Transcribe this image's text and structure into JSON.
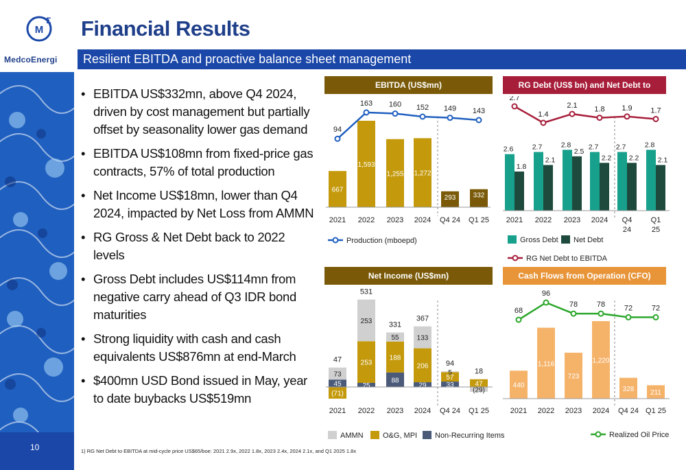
{
  "brand": {
    "logo_text": "MedcoEnergi",
    "page_number": "10"
  },
  "page_title": "Financial Results",
  "subtitle": "Resilient EBITDA and proactive balance sheet management",
  "bullets": [
    "EBITDA US$332mn, above Q4 2024, driven by cost management but partially offset by seasonality lower gas demand",
    "EBITDA US$108mn from fixed-price gas contracts, 57% of total production",
    "Net Income US$18mn, lower than Q4 2024, impacted by Net Loss from AMMN",
    "RG Gross & Net Debt back to 2022 levels",
    "Gross Debt includes US$114mn from negative carry ahead of Q3 IDR bond maturities",
    "Strong liquidity with cash and cash equivalents US$876mn at end-March",
    "$400mn USD Bond issued in May, year to date buybacks US$519mn"
  ],
  "footnote": "1) RG Net Debt to EBITDA at mid-cycle price US$65/boe: 2021 2.9x, 2022 1.8x, 2023 2.4x, 2024 2.1x, and Q1 2025 1.8x",
  "colors": {
    "gold": "#c49a0c",
    "dark_gold": "#7a5a08",
    "blue_line": "#1f5fbf",
    "teal": "#17a08c",
    "dark_green": "#1d4a3c",
    "maroon": "#a71e3a",
    "orange": "#f5b36a",
    "green_line": "#2aa62a",
    "gray": "#d0d0d0",
    "slate": "#4a5a78",
    "brand_blue": "#1a47a8"
  },
  "chart_data": [
    {
      "type": "bar",
      "title": "EBITDA (US$mn)",
      "categories": [
        "2021",
        "2022",
        "2023",
        "2024",
        "Q4 24",
        "Q1 25"
      ],
      "series": [
        {
          "name": "EBITDA",
          "values": [
            667,
            1593,
            1255,
            1272,
            293,
            332
          ]
        }
      ],
      "line_series": [
        {
          "name": "Production (mboepd)",
          "values": [
            94,
            163,
            160,
            152,
            149,
            143
          ]
        }
      ],
      "value_labels": [
        "667",
        "1,593",
        "1,255",
        "1,272",
        "293",
        "332"
      ],
      "legend": [
        "Production (mboepd)"
      ]
    },
    {
      "type": "bar",
      "title": "RG Debt (US$ bn) and Net Debt to EBITDA",
      "title_superscript": "1",
      "categories": [
        "2021",
        "2022",
        "2023",
        "2024",
        "Q4 24",
        "Q1 25"
      ],
      "series": [
        {
          "name": "Gross Debt",
          "values": [
            2.6,
            2.7,
            2.8,
            2.7,
            2.7,
            2.8
          ]
        },
        {
          "name": "Net Debt",
          "values": [
            1.8,
            2.1,
            2.5,
            2.2,
            2.2,
            2.1
          ]
        }
      ],
      "line_series": [
        {
          "name": "RG Net Debt to EBITDA",
          "values": [
            2.7,
            1.4,
            2.1,
            1.8,
            1.9,
            1.7
          ]
        }
      ],
      "legend": [
        "Gross Debt",
        "Net Debt",
        "RG Net Debt to EBITDA"
      ]
    },
    {
      "type": "bar",
      "title": "Net Income (US$mn)",
      "categories": [
        "2021",
        "2022",
        "2023",
        "2024",
        "Q4 24",
        "Q1 25"
      ],
      "series": [
        {
          "name": "AMMN",
          "values": [
            73,
            253,
            55,
            133,
            5,
            -29
          ]
        },
        {
          "name": "O&G, MPI",
          "values": [
            -71,
            253,
            188,
            206,
            57,
            47
          ]
        },
        {
          "name": "Non-Recurring Items",
          "values": [
            45,
            25,
            88,
            29,
            33,
            0
          ]
        }
      ],
      "seg_labels": {
        "AMMN": [
          "73",
          "253",
          "55",
          "133",
          "5",
          "(29)"
        ],
        "O&G, MPI": [
          "(71)",
          "253",
          "188",
          "206",
          "57",
          "47"
        ],
        "Non-Recurring Items": [
          "45",
          "25",
          "88",
          "29",
          "33",
          ""
        ]
      },
      "totals": [
        "47",
        "531",
        "331",
        "367",
        "94",
        "18"
      ],
      "legend": [
        "AMMN",
        "O&G, MPI",
        "Non-Recurring Items"
      ]
    },
    {
      "type": "bar",
      "title": "Cash Flows from Operation (CFO) (US$mn)",
      "categories": [
        "2021",
        "2022",
        "2023",
        "2024",
        "Q4 24",
        "Q1 25"
      ],
      "series": [
        {
          "name": "CFO",
          "values": [
            440,
            1116,
            723,
            1220,
            328,
            211
          ]
        }
      ],
      "line_series": [
        {
          "name": "Realized Oil Price",
          "values": [
            68,
            96,
            78,
            78,
            72,
            72
          ]
        }
      ],
      "value_labels": [
        "440",
        "1,116",
        "723",
        "1,220",
        "328",
        "211"
      ],
      "legend": [
        "Realized Oil Price"
      ]
    }
  ]
}
